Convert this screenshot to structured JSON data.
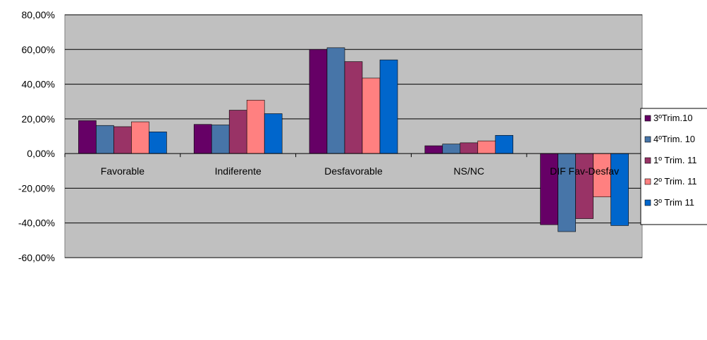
{
  "chart_data": {
    "type": "bar",
    "title": "",
    "xlabel": "",
    "ylabel": "",
    "ylim": [
      -0.6,
      0.8
    ],
    "yticks": [
      "80,00%",
      "60,00%",
      "40,00%",
      "20,00%",
      "0,00%",
      "-20,00%",
      "-40,00%",
      "-60,00%"
    ],
    "ytick_values": [
      0.8,
      0.6,
      0.4,
      0.2,
      0.0,
      -0.2,
      -0.4,
      -0.6
    ],
    "categories": [
      "Favorable",
      "Indiferente",
      "Desfavorable",
      "NS/NC",
      "DIF Fav-Desfav"
    ],
    "series": [
      {
        "name": "3ºTrim.10",
        "color": "#660066",
        "values": [
          0.19,
          0.168,
          0.6,
          0.045,
          -0.41
        ]
      },
      {
        "name": "4ºTrim. 10",
        "color": "#4775a8",
        "values": [
          0.162,
          0.165,
          0.61,
          0.055,
          -0.45
        ]
      },
      {
        "name": "1º Trim. 11",
        "color": "#993366",
        "values": [
          0.155,
          0.25,
          0.53,
          0.062,
          -0.375
        ]
      },
      {
        "name": "2º Trim. 11",
        "color": "#ff8080",
        "values": [
          0.183,
          0.308,
          0.435,
          0.073,
          -0.25
        ]
      },
      {
        "name": "3º Trim 11",
        "color": "#0066cc",
        "values": [
          0.125,
          0.23,
          0.54,
          0.105,
          -0.415
        ]
      }
    ],
    "grid": true,
    "plot_background": "#c0c0c0",
    "legend_position": "right"
  }
}
